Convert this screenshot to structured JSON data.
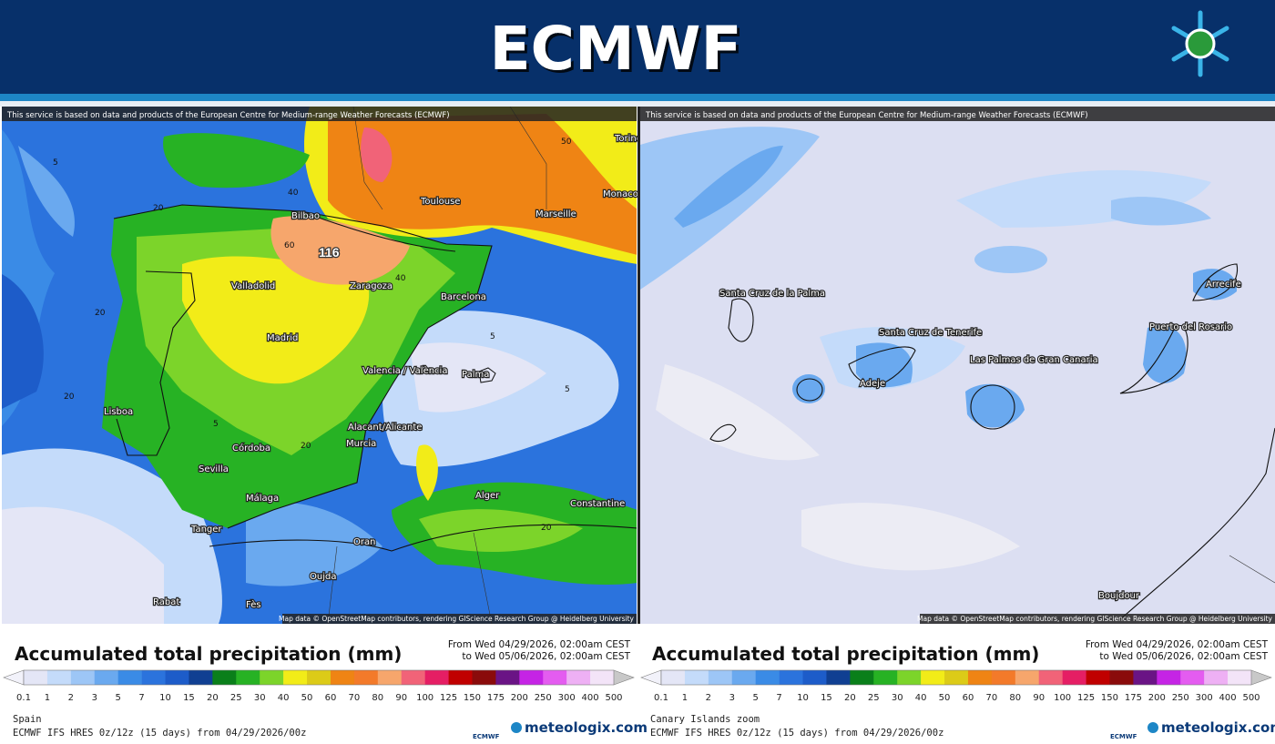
{
  "header": {
    "title": "ECMWF"
  },
  "panels": [
    {
      "attribution": "This service is based on data and products of the European Centre for Medium-range Weather Forecasts (ECMWF)",
      "map_credit": "Map data © OpenStreetMap contributors, rendering GIScience Research Group @ Heidelberg University",
      "places": [
        "Torino",
        "Monaco",
        "Toulouse",
        "Marseille",
        "Bilbao",
        "Valladolid",
        "Zaragoza",
        "Barcelona",
        "Madrid",
        "Valencia / València",
        "Palma",
        "Lisboa",
        "Alacant/Alicante",
        "Murcia",
        "Córdoba",
        "Sevilla",
        "Málaga",
        "Alger",
        "Constantine",
        "Tanger",
        "Oran",
        "Oujda",
        "Rabat",
        "Fès"
      ],
      "contour_labels": [
        116,
        60,
        40,
        20,
        20,
        20,
        5,
        5,
        5,
        50,
        40,
        20,
        5,
        20
      ],
      "legend_title": "Accumulated total precipitation (mm)",
      "period_from": "From Wed 04/29/2026, 02:00am CEST",
      "period_to": "to Wed 05/06/2026, 02:00am CEST",
      "region": "Spain",
      "model_run": "ECMWF IFS HRES 0z/12z (15 days) from 04/29/2026/00z"
    },
    {
      "attribution": "This service is based on data and products of the European Centre for Medium-range Weather Forecasts (ECMWF)",
      "map_credit": "Map data © OpenStreetMap contributors, rendering GIScience Research Group @ Heidelberg University",
      "places": [
        "Santa Cruz de la Palma",
        "Santa Cruz de Tenerife",
        "Adeje",
        "Las Palmas de Gran Canaria",
        "Puerto del Rosario",
        "Arrecife",
        "Boujdour"
      ],
      "legend_title": "Accumulated total precipitation (mm)",
      "period_from": "From Wed 04/29/2026, 02:00am CEST",
      "period_to": "to Wed 05/06/2026, 02:00am CEST",
      "region": "Canary Islands zoom",
      "model_run": "ECMWF IFS HRES 0z/12z (15 days) from 04/29/2026/00z"
    }
  ],
  "scale": {
    "ticks": [
      0.1,
      1,
      2,
      3,
      5,
      7,
      10,
      15,
      20,
      25,
      30,
      40,
      50,
      60,
      70,
      80,
      90,
      100,
      125,
      150,
      175,
      200,
      250,
      300,
      400,
      500
    ],
    "colors": [
      "#e4e6f6",
      "#c4dbfa",
      "#9dc6f6",
      "#6aa9ef",
      "#3a8be6",
      "#2b73dd",
      "#1d5cc9",
      "#103f92",
      "#0a7f1a",
      "#27b224",
      "#7cd42a",
      "#f2ec18",
      "#dccb18",
      "#ef8414",
      "#f37a2a",
      "#f6a66c",
      "#f16378",
      "#e51e64",
      "#c00000",
      "#8a0b0b",
      "#6a1485",
      "#c524e5",
      "#e45cf0",
      "#eeb0f4",
      "#f3e4f8"
    ],
    "under_color": "#f2f2fa",
    "over_color": "#c8c8c8"
  },
  "logos": {
    "agency": "ECMWF",
    "brand": "meteologix.com"
  }
}
